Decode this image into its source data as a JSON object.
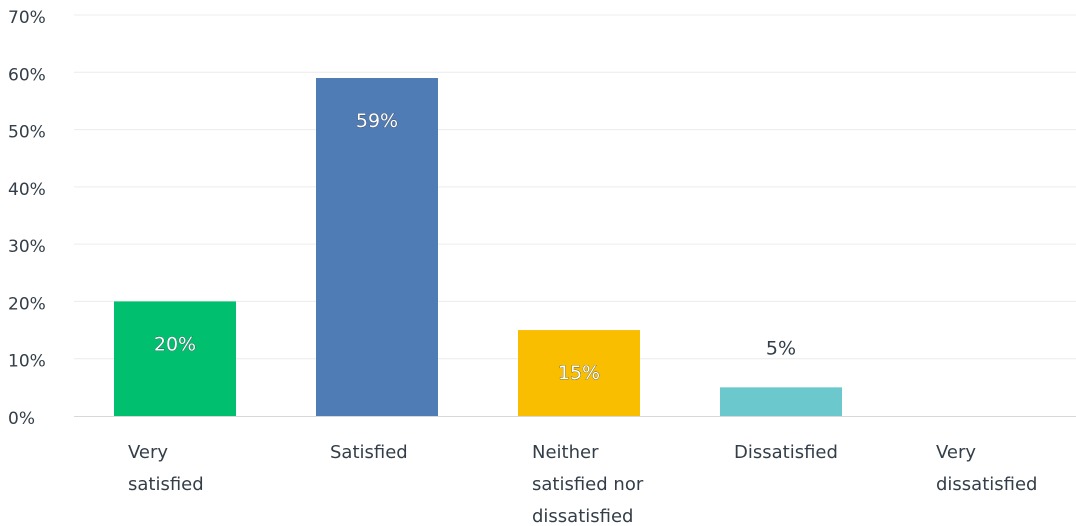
{
  "chart_data": {
    "type": "bar",
    "categories": [
      [
        "Very",
        "satisfied"
      ],
      [
        "Satisfied"
      ],
      [
        "Neither",
        "satisfied nor",
        "dissatisfied"
      ],
      [
        "Dissatisfied"
      ],
      [
        "Very",
        "dissatisfied"
      ]
    ],
    "values": [
      20,
      59,
      15,
      5,
      0
    ],
    "data_labels": [
      "20%",
      "59%",
      "15%",
      "5%",
      ""
    ],
    "colors": [
      "#00bf6f",
      "#507cb6",
      "#f9be00",
      "#6bc8cd",
      "#cccccc"
    ],
    "ylim": [
      0,
      70
    ],
    "yticks": [
      {
        "value": 0,
        "label": "0%"
      },
      {
        "value": 10,
        "label": "10%"
      },
      {
        "value": 20,
        "label": "20%"
      },
      {
        "value": 30,
        "label": "30%"
      },
      {
        "value": 40,
        "label": "40%"
      },
      {
        "value": 50,
        "label": "50%"
      },
      {
        "value": 60,
        "label": "60%"
      },
      {
        "value": 70,
        "label": "70%"
      }
    ],
    "grid": true,
    "title": "",
    "xlabel": "",
    "ylabel": ""
  }
}
